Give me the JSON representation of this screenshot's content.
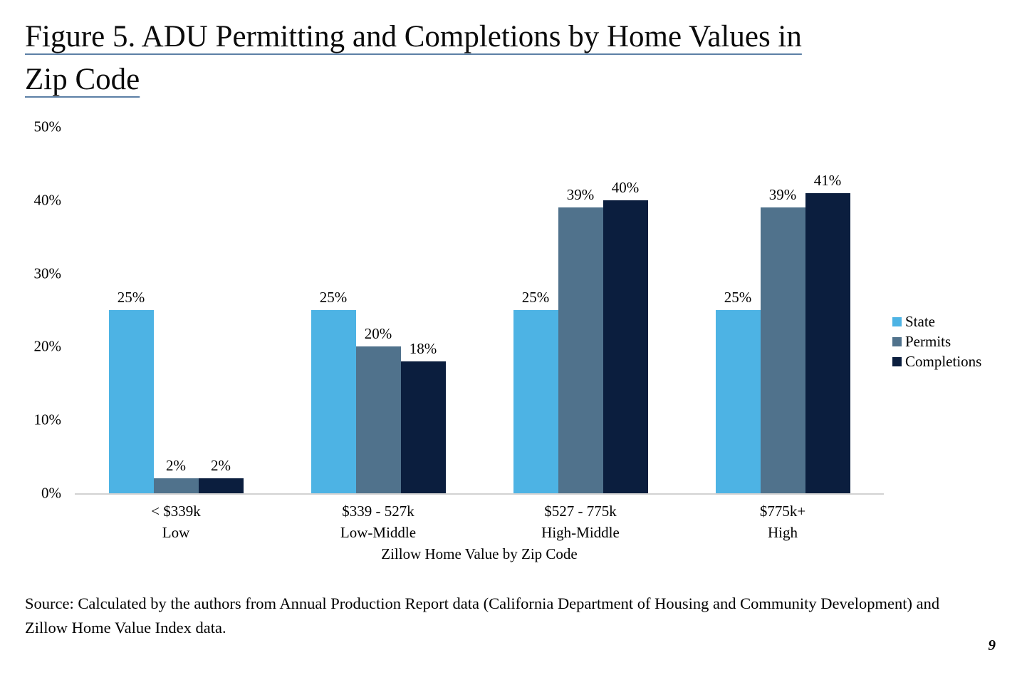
{
  "page": {
    "title_line1": "Figure 5. ADU Permitting and Completions by Home Values in",
    "title_line2": "Zip Code",
    "source_note": "Source: Calculated by the authors from Annual Production Report data (California Department of Housing and Community Development) and Zillow Home Value Index data.",
    "page_number": "9"
  },
  "chart_data": {
    "type": "bar",
    "title": "Figure 5. ADU Permitting and Completions by Home Values in Zip Code",
    "categories": [
      {
        "range": "< $339k",
        "tier": "Low"
      },
      {
        "range": "$339 - 527k",
        "tier": "Low-Middle"
      },
      {
        "range": "$527 - 775k",
        "tier": "High-Middle"
      },
      {
        "range": "$775k+",
        "tier": "High"
      }
    ],
    "series": [
      {
        "name": "State",
        "color": "#4db3e4",
        "values": [
          25,
          25,
          25,
          25
        ]
      },
      {
        "name": "Permits",
        "color": "#50728c",
        "values": [
          2,
          20,
          39,
          39
        ]
      },
      {
        "name": "Completions",
        "color": "#0b1e3e",
        "values": [
          2,
          18,
          40,
          41
        ]
      }
    ],
    "value_label_suffix": "%",
    "xlabel": "Zillow Home Value by Zip Code",
    "ylabel": "",
    "ylim": [
      0,
      50
    ],
    "yticks": [
      0,
      10,
      20,
      30,
      40,
      50
    ],
    "ytick_labels": [
      "0%",
      "10%",
      "20%",
      "30%",
      "40%",
      "50%"
    ],
    "grid": false,
    "legend": {
      "position": "right",
      "entries": [
        "State",
        "Permits",
        "Completions"
      ]
    }
  },
  "colors": {
    "axis_line": "#d2d2d2",
    "title_underline": "#5c80a6"
  }
}
